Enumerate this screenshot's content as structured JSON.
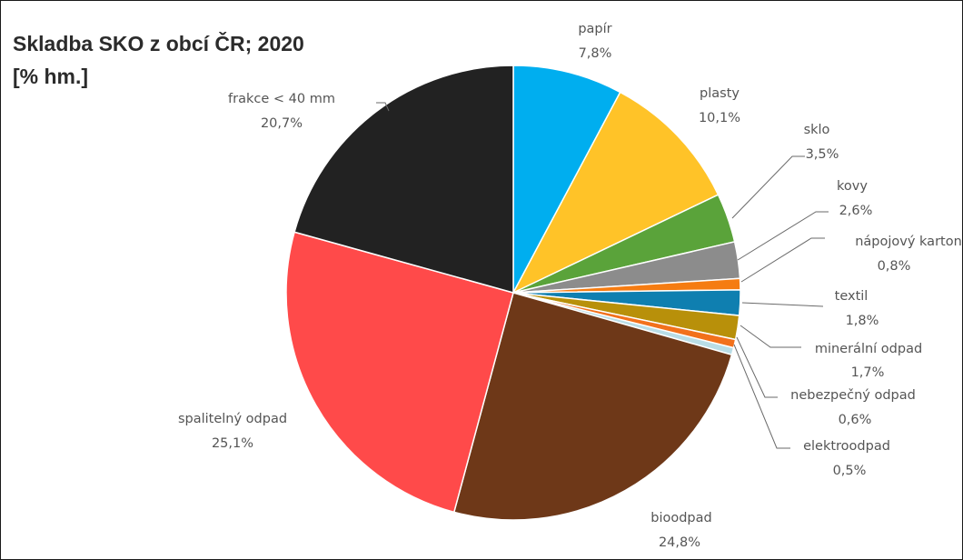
{
  "chart_data": {
    "type": "pie",
    "title": "Skladba SKO z obcí ČR; 2020",
    "subtitle": "[% hm.]",
    "slices": [
      {
        "label": "papír",
        "display": "7,8%",
        "value": 7.8,
        "color": "#00AEEF"
      },
      {
        "label": "plasty",
        "display": "10,1%",
        "value": 10.1,
        "color": "#FFC328"
      },
      {
        "label": "sklo",
        "display": "3,5%",
        "value": 3.5,
        "color": "#5AA33A"
      },
      {
        "label": "kovy",
        "display": "2,6%",
        "value": 2.6,
        "color": "#8C8C8C"
      },
      {
        "label": "nápojový karton",
        "display": "0,8%",
        "value": 0.8,
        "color": "#F57C12"
      },
      {
        "label": "textil",
        "display": "1,8%",
        "value": 1.8,
        "color": "#0F7FB0"
      },
      {
        "label": "minerální odpad",
        "display": "1,7%",
        "value": 1.7,
        "color": "#B8900A"
      },
      {
        "label": "nebezpečný odpad",
        "display": "0,6%",
        "value": 0.6,
        "color": "#F2711C"
      },
      {
        "label": "elektroodpad",
        "display": "0,5%",
        "value": 0.5,
        "color": "#B9DDE6"
      },
      {
        "label": "bioodpad",
        "display": "24,8%",
        "value": 24.8,
        "color": "#6E3818"
      },
      {
        "label": "spalitelný odpad",
        "display": "25,1%",
        "value": 25.1,
        "color": "#FF4A4A"
      },
      {
        "label": "frakce < 40 mm",
        "display": "20,7%",
        "value": 20.7,
        "color": "#222222"
      }
    ]
  }
}
